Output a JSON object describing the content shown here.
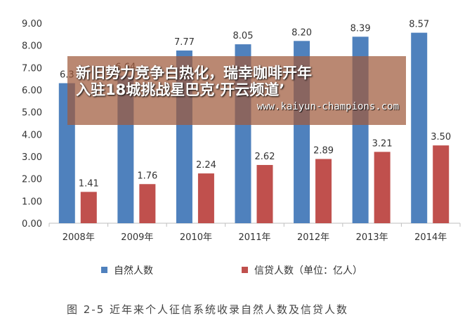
{
  "colors": {
    "series_1": "#4F81BD",
    "series_2": "#C0504D",
    "overlay_bg": "rgba(160, 90, 60, 0.72)",
    "grid": "#d9d9d9"
  },
  "overlay": {
    "headline_line1": "新旧势力竞争白热化，瑞幸咖啡开年",
    "headline_line2": "入驻18城挑战星巴克‘开云频道’",
    "url": "www.kaiyun-champions.com"
  },
  "caption": "图 2-5  近年来个人征信系统收录自然人数及信贷人数",
  "chart_data": {
    "type": "bar",
    "categories": [
      "2008年",
      "2009年",
      "2010年",
      "2011年",
      "2012年",
      "2013年",
      "2014年"
    ],
    "series": [
      {
        "name": "自然人数",
        "values": [
          6.3,
          6.64,
          7.77,
          8.05,
          8.2,
          8.39,
          8.57
        ]
      },
      {
        "name": "信贷人数（单位：亿人）",
        "values": [
          1.41,
          1.76,
          2.24,
          2.62,
          2.89,
          3.21,
          3.5
        ]
      }
    ],
    "data_labels": [
      [
        "6.3",
        "6.64",
        "7.77",
        "8.05",
        "8.20",
        "8.39",
        "8.57"
      ],
      [
        "1.41",
        "1.76",
        "2.24",
        "2.62",
        "2.89",
        "3.21",
        "3.50"
      ]
    ],
    "y_ticks": [
      "0.00",
      "1.00",
      "2.00",
      "3.00",
      "4.00",
      "5.00",
      "6.00",
      "7.00",
      "8.00",
      "9.00"
    ],
    "ylim": [
      0,
      9
    ],
    "grid": false,
    "legend_placement": "bottom",
    "title": "",
    "xlabel": "",
    "ylabel": ""
  }
}
